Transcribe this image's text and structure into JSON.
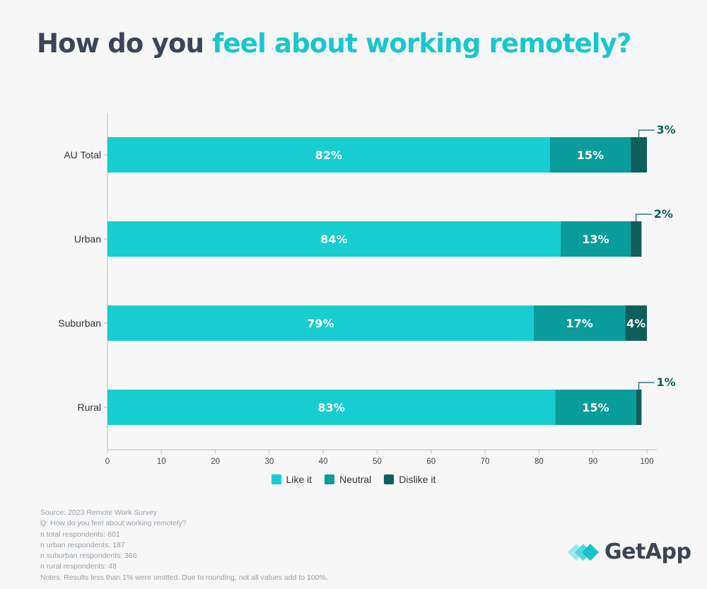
{
  "title": {
    "part1": "How do you ",
    "part2": "feel about working remotely?"
  },
  "colors": {
    "like": "#17cdd0",
    "neutral": "#099c9b",
    "dislike": "#0d5f5c",
    "title_dark": "#3a4556",
    "title_accent": "#17c7ce"
  },
  "chart_data": {
    "type": "bar",
    "orientation": "horizontal",
    "stacked": true,
    "categories": [
      "AU Total",
      "Urban",
      "Suburban",
      "Rural"
    ],
    "series": [
      {
        "name": "Like it",
        "values": [
          82,
          84,
          79,
          83
        ],
        "labels": [
          "82%",
          "84%",
          "79%",
          "83%"
        ]
      },
      {
        "name": "Neutral",
        "values": [
          15,
          13,
          17,
          15
        ],
        "labels": [
          "15%",
          "13%",
          "17%",
          "15%"
        ]
      },
      {
        "name": "Dislike it",
        "values": [
          3,
          2,
          4,
          1
        ],
        "labels": [
          "3%",
          "2%",
          "4%",
          "1%"
        ]
      }
    ],
    "xlim": [
      0,
      100
    ],
    "xticks": [
      0,
      10,
      20,
      30,
      40,
      50,
      60,
      70,
      80,
      90,
      100
    ],
    "legend_position": "bottom"
  },
  "notes": [
    "Source: 2023 Remote Work Survey",
    "Q: How do you feel about working remotely?",
    "n total respondents: 601",
    "n urban respondents: 187",
    "n suburban respondents: 366",
    "n rural respondents: 48",
    "Notes: Results less than 1% were omitted. Due to rounding, not all values add to 100%."
  ],
  "logo": {
    "text": "GetApp",
    "icon": "getapp-chevrons-icon"
  }
}
